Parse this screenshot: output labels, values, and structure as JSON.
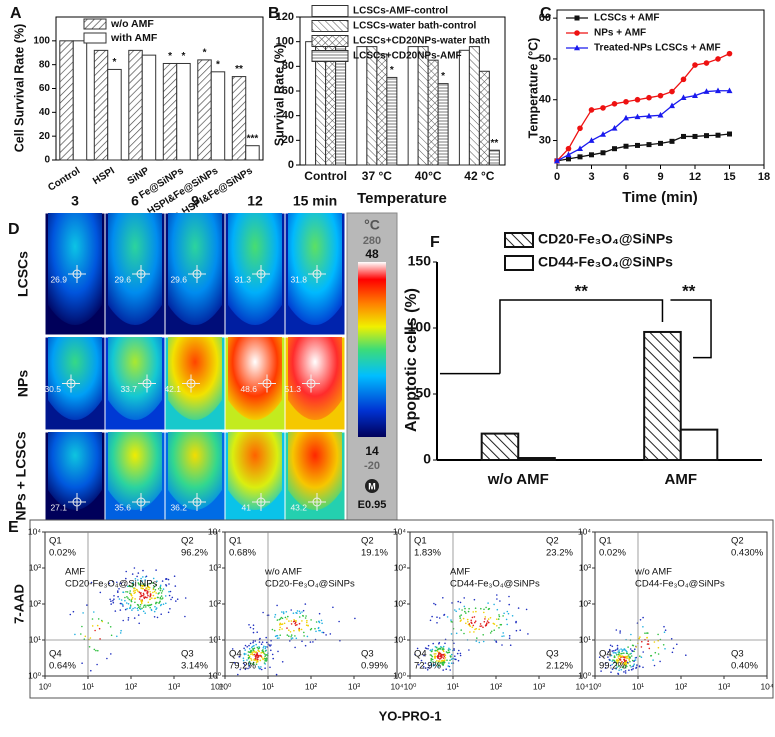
{
  "panels": [
    "A",
    "B",
    "C",
    "D",
    "E",
    "F"
  ],
  "chart_data": [
    {
      "type": "bar",
      "y_label": "Cell Survival Rate (%)",
      "categories": [
        "Control",
        "HSPI",
        "SiNP",
        "Fe@SiNPs",
        "HSPI&Fe@SiNPs",
        "CD20-HSPI&Fe@SiNPs"
      ],
      "series": [
        {
          "name": "w/o AMF",
          "color": "#333333",
          "values": [
            100,
            92,
            92,
            81,
            84,
            70
          ],
          "annotations": [
            null,
            null,
            null,
            "*",
            "*",
            "**"
          ]
        },
        {
          "name": "with AMF",
          "color": "#333333",
          "values": [
            100,
            76,
            88,
            81,
            74,
            12
          ],
          "annotations": [
            null,
            "*",
            null,
            "*",
            "*",
            "***"
          ]
        }
      ],
      "ylim": [
        0,
        120
      ],
      "yticks": [
        0,
        20,
        40,
        60,
        80,
        100
      ],
      "legend": "top-right"
    },
    {
      "type": "bar",
      "x_label": "Temperature",
      "y_label": "Survival Rate (%)",
      "categories": [
        "Control",
        "37 °C",
        "40°C",
        "42 °C"
      ],
      "series": [
        {
          "name": "LCSCs-AMF-control",
          "color": "#333333",
          "values": [
            100,
            96,
            96,
            93
          ],
          "annotations": [
            null,
            null,
            null,
            null
          ]
        },
        {
          "name": "LCSCs-water bath-control",
          "color": "#333333",
          "values": [
            100,
            96,
            96,
            96
          ],
          "annotations": [
            null,
            null,
            null,
            null
          ]
        },
        {
          "name": "LCSCs+CD20NPs-water bath",
          "color": "#333333",
          "values": [
            100,
            90,
            85,
            76
          ],
          "annotations": [
            null,
            null,
            null,
            null
          ]
        },
        {
          "name": "LCSCs+CD20NPs-AMF",
          "color": "#333333",
          "values": [
            100,
            71,
            66,
            12
          ],
          "annotations": [
            null,
            "*",
            "*",
            "**"
          ]
        }
      ],
      "ylim": [
        0,
        120
      ],
      "yticks": [
        0,
        20,
        40,
        60,
        80,
        100,
        120
      ],
      "legend": "top"
    },
    {
      "type": "line",
      "x_label": "Time (min)",
      "y_label": "Temperature (°C)",
      "x": [
        0,
        1,
        2,
        3,
        4,
        5,
        6,
        7,
        8,
        9,
        10,
        11,
        12,
        13,
        14,
        15
      ],
      "series": [
        {
          "name": "LCSCs + AMF",
          "color": "#111111",
          "values": [
            25,
            25.5,
            26,
            26.5,
            27,
            28,
            28.6,
            28.8,
            29,
            29.3,
            29.8,
            31,
            31,
            31.2,
            31.3,
            31.6
          ]
        },
        {
          "name": "NPs + AMF",
          "color": "#ee1111",
          "values": [
            25,
            28,
            33,
            37.5,
            38,
            39,
            39.5,
            40,
            40.5,
            41,
            42,
            45,
            48.5,
            49,
            50,
            51.3
          ]
        },
        {
          "name": "Treated-NPs LCSCs + AMF",
          "color": "#1a1aee",
          "values": [
            25,
            26.5,
            28,
            30,
            31.5,
            33,
            35.5,
            35.8,
            36,
            36.2,
            38.5,
            40.5,
            41,
            42,
            42.2,
            42.2
          ]
        }
      ],
      "xlim": [
        0,
        18
      ],
      "xticks": [
        0,
        3,
        6,
        9,
        12,
        15,
        18
      ],
      "ylim": [
        24,
        62
      ],
      "yticks": [
        30,
        40,
        50,
        60
      ],
      "legend": "top-left"
    },
    {
      "type": "bar",
      "y_label": "Apoptotic cells (%)",
      "categories": [
        "w/o AMF",
        "AMF"
      ],
      "series": [
        {
          "name": "CD20-Fe₃O₄@SiNPs",
          "color": "#111111",
          "values": [
            20,
            97
          ]
        },
        {
          "name": "CD44-Fe₃O₄@SiNPs",
          "color": "#111111",
          "values": [
            1.5,
            23
          ]
        }
      ],
      "annotations": [
        "**",
        "**"
      ],
      "ylim": [
        0,
        150
      ],
      "yticks": [
        0,
        50,
        100,
        150
      ],
      "legend": "top"
    }
  ],
  "thermal": {
    "columns": [
      "3",
      "6",
      "9",
      "12",
      "15 min"
    ],
    "rows": [
      {
        "label": "LCSCs",
        "values": [
          26.9,
          29.6,
          29.6,
          31.3,
          31.8
        ]
      },
      {
        "label": "NPs",
        "values": [
          30.5,
          33.7,
          42.1,
          48.6,
          51.3
        ]
      },
      {
        "label": "NPs + LCSCs",
        "values": [
          27.1,
          35.6,
          36.2,
          41.0,
          43.2
        ]
      }
    ],
    "scale": {
      "unit": "°C",
      "top": "280",
      "max": 48,
      "min": 14,
      "bottom": "-20",
      "mode": "M",
      "emissivity": "E0.95"
    }
  },
  "flow": {
    "y_label": "7-AAD",
    "x_label": "YO-PRO-1",
    "quadrants": [
      "Q1",
      "Q2",
      "Q3",
      "Q4"
    ],
    "ticks": [
      {
        "value": 1,
        "label": "10⁰"
      },
      {
        "value": 10,
        "label": "10¹"
      },
      {
        "value": 100,
        "label": "10²"
      },
      {
        "value": 1000,
        "label": "10³"
      },
      {
        "value": 10000,
        "label": "10⁴"
      }
    ],
    "plots": [
      {
        "condition": "AMF",
        "sample": "CD20-Fe₃O₄@Si NPs",
        "percent": [
          "0.02%",
          "96.2%",
          "3.14%",
          "0.64%"
        ]
      },
      {
        "condition": "w/o AMF",
        "sample": "CD20-Fe₃O₄@SiNPs",
        "percent": [
          "0.68%",
          "19.1%",
          "0.99%",
          "79.2%"
        ]
      },
      {
        "condition": "AMF",
        "sample": "CD44-Fe₃O₄@SiNPs",
        "percent": [
          "1.83%",
          "23.2%",
          "2.12%",
          "72.9%"
        ]
      },
      {
        "condition": "w/o AMF",
        "sample": "CD44-Fe₃O₄@SiNPs",
        "percent": [
          "0.02%",
          "0.430%",
          "0.40%",
          "99.2%"
        ]
      }
    ]
  }
}
